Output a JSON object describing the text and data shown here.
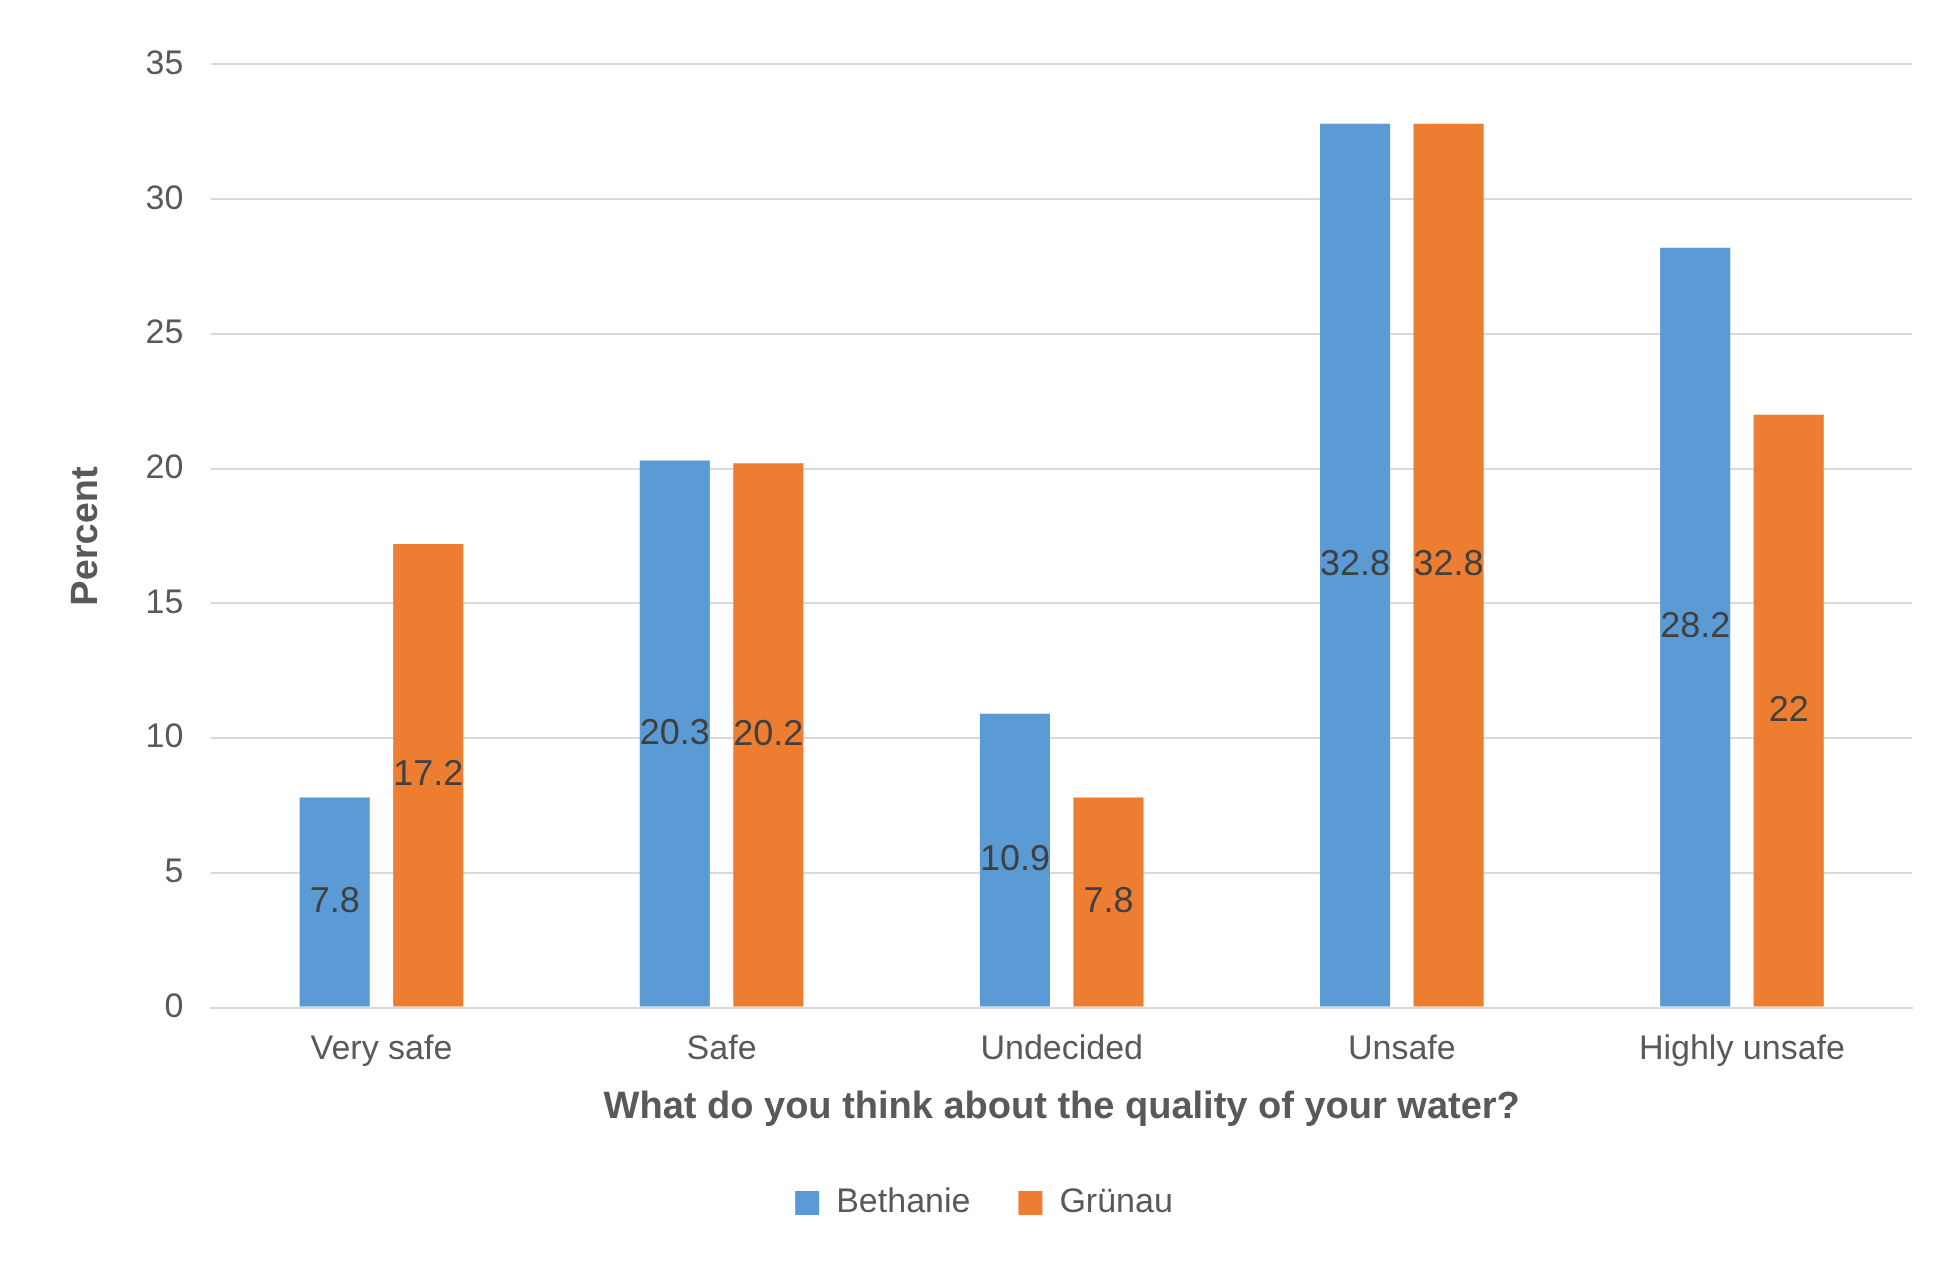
{
  "chart_data": {
    "type": "bar",
    "xlabel": "What do you think about the quality of your water?",
    "ylabel": "Percent",
    "categories": [
      "Very safe",
      "Safe",
      "Undecided",
      "Unsafe",
      "Highly unsafe"
    ],
    "series": [
      {
        "name": "Bethanie",
        "color": "#5b9bd5",
        "values": [
          7.8,
          20.3,
          10.9,
          32.8,
          28.2
        ]
      },
      {
        "name": "Grünau",
        "color": "#ed7d31",
        "values": [
          17.2,
          20.2,
          7.8,
          32.8,
          22
        ]
      }
    ],
    "ylim": [
      0,
      35
    ],
    "yticks": [
      0,
      5,
      10,
      15,
      20,
      25,
      30,
      35
    ],
    "grid": "y",
    "legend": "bottom",
    "data_labels": true
  }
}
